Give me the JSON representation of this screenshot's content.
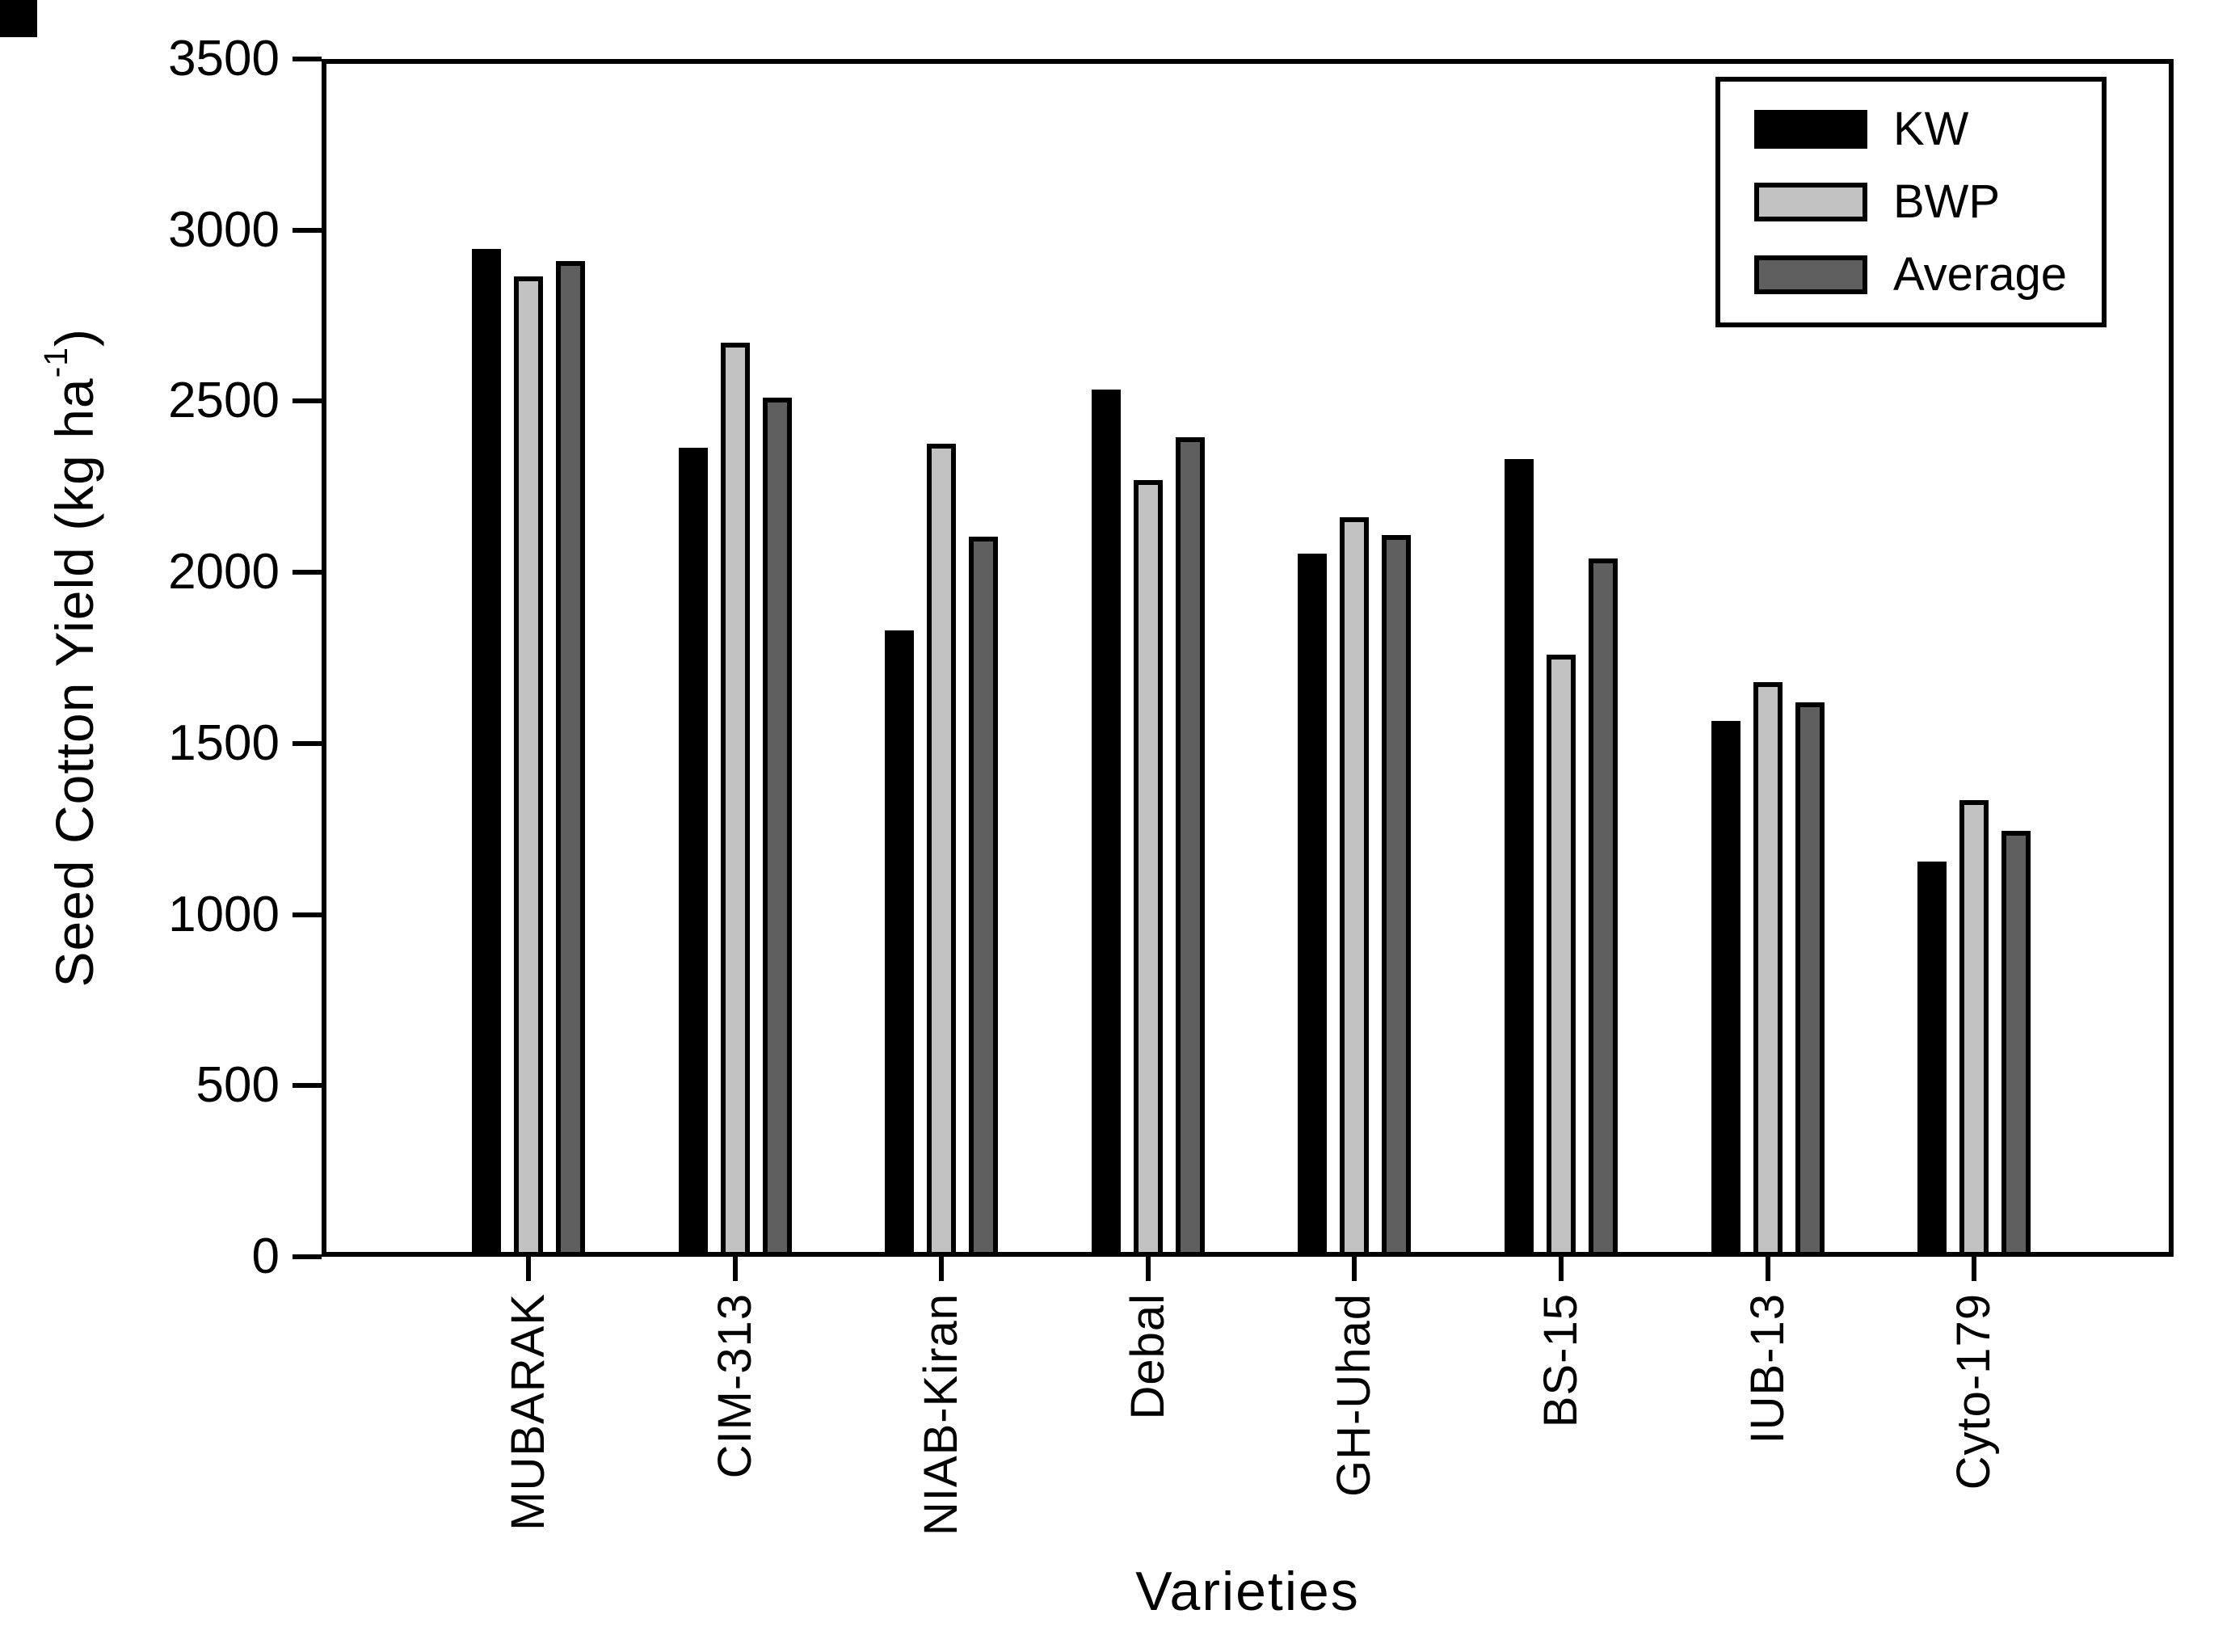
{
  "chart_data": {
    "type": "bar",
    "title": "",
    "xlabel": "Varieties",
    "ylabel": "Seed Cotton Yield (kg ha-1)",
    "ylabel_parts": {
      "prefix": "Seed Cotton Yield (kg ha",
      "superscript": "-1",
      "suffix": ")"
    },
    "ylim": [
      0,
      3500
    ],
    "ytick_interval": 500,
    "ytick_labels": [
      "0",
      "500",
      "1000",
      "1500",
      "2000",
      "2500",
      "3000",
      "3500"
    ],
    "grid": false,
    "background_color": "#ffffff",
    "axis_color": "#000000",
    "bar_outline_color": "#000000",
    "categories": [
      "MUBARAK",
      "CIM-313",
      "NIAB-Kiran",
      "Debal",
      "GH-Uhad",
      "BS-15",
      "IUB-13",
      "Cyto-179"
    ],
    "series": [
      {
        "name": "KW",
        "color": "#000000",
        "values": [
          2945,
          2365,
          1830,
          2535,
          2055,
          2330,
          1565,
          1155
        ]
      },
      {
        "name": "BWP",
        "color": "#c2c2c2",
        "values": [
          2865,
          2670,
          2375,
          2270,
          2160,
          1760,
          1680,
          1335
        ]
      },
      {
        "name": "Average",
        "color": "#5f5f5f",
        "values": [
          2910,
          2510,
          2105,
          2395,
          2110,
          2040,
          1620,
          1245
        ]
      }
    ],
    "legend": {
      "position": "top-right",
      "entries": [
        "KW",
        "BWP",
        "Average"
      ]
    }
  }
}
